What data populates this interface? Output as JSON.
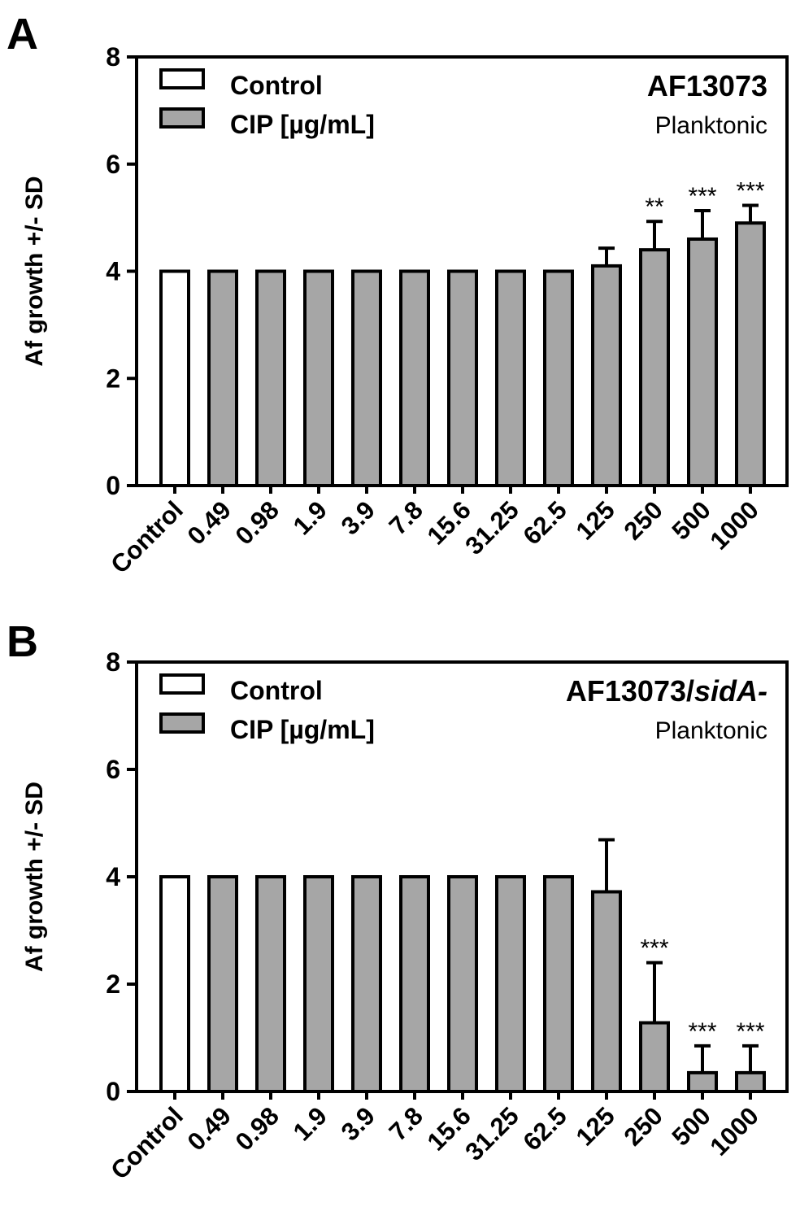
{
  "chart_data": [
    {
      "panel": "A",
      "type": "bar",
      "strain": "AF13073",
      "strain_suffix": "",
      "condition": "Planktonic",
      "ylabel": "Af growth +/- SD",
      "xlabel": "",
      "ylim": [
        0,
        8
      ],
      "yticks": [
        "0",
        "2",
        "4",
        "6",
        "8"
      ],
      "legend": [
        {
          "label": "Control",
          "color": "#ffffff"
        },
        {
          "label": "CIP [µg/mL]",
          "color": "#a6a6a6"
        }
      ],
      "legend_position": "top-left",
      "categories": [
        "Control",
        "0.49",
        "0.98",
        "1.9",
        "3.9",
        "7.8",
        "15.6",
        "31.25",
        "62.5",
        "125",
        "250",
        "500",
        "1000"
      ],
      "values": [
        4.0,
        4.0,
        4.0,
        4.0,
        4.0,
        4.0,
        4.0,
        4.0,
        4.0,
        4.1,
        4.4,
        4.6,
        4.9
      ],
      "errors": [
        0,
        0,
        0,
        0,
        0,
        0,
        0,
        0,
        0,
        0.33,
        0.53,
        0.53,
        0.33
      ],
      "significance": [
        "",
        "",
        "",
        "",
        "",
        "",
        "",
        "",
        "",
        "",
        "**",
        "***",
        "***"
      ]
    },
    {
      "panel": "B",
      "type": "bar",
      "strain": "AF13073/",
      "strain_suffix": "sidA-",
      "condition": "Planktonic",
      "ylabel": "Af growth +/- SD",
      "xlabel": "",
      "ylim": [
        0,
        8
      ],
      "yticks": [
        "0",
        "2",
        "4",
        "6",
        "8"
      ],
      "legend": [
        {
          "label": "Control",
          "color": "#ffffff"
        },
        {
          "label": "CIP [µg/mL]",
          "color": "#a6a6a6"
        }
      ],
      "legend_position": "top-left",
      "categories": [
        "Control",
        "0.49",
        "0.98",
        "1.9",
        "3.9",
        "7.8",
        "15.6",
        "31.25",
        "62.5",
        "125",
        "250",
        "500",
        "1000"
      ],
      "values": [
        4.0,
        4.0,
        4.0,
        4.0,
        4.0,
        4.0,
        4.0,
        4.0,
        4.0,
        3.72,
        1.28,
        0.35,
        0.35
      ],
      "errors": [
        0,
        0,
        0,
        0,
        0,
        0,
        0,
        0,
        0,
        0.97,
        1.12,
        0.5,
        0.5
      ],
      "significance": [
        "",
        "",
        "",
        "",
        "",
        "",
        "",
        "",
        "",
        "",
        "***",
        "***",
        "***"
      ]
    }
  ]
}
